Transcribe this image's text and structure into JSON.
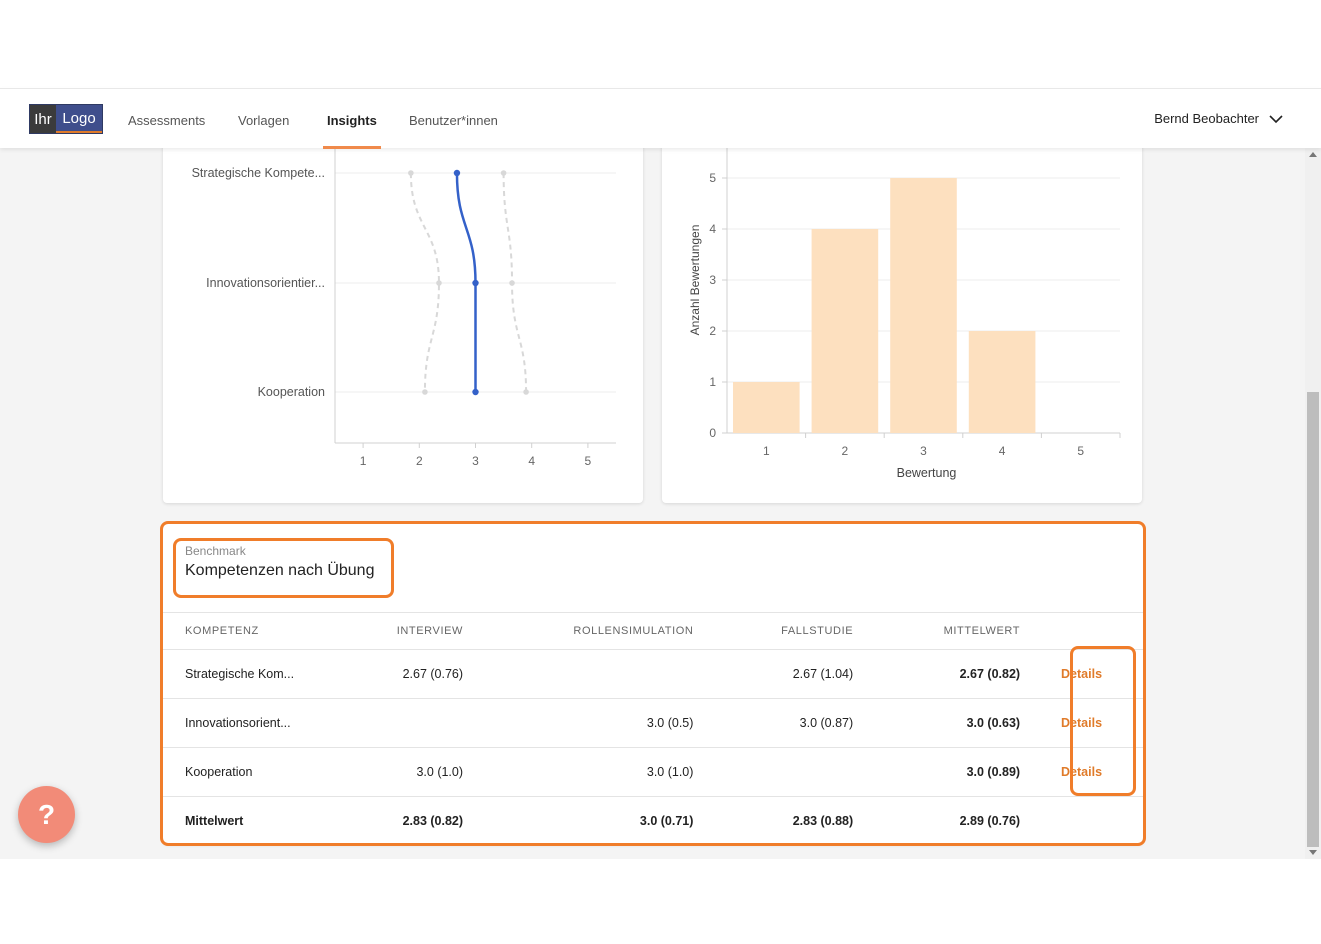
{
  "navbar": {
    "logo": {
      "part1": "Ihr",
      "part2": "Logo"
    },
    "items": [
      {
        "label": "Assessments"
      },
      {
        "label": "Vorlagen"
      },
      {
        "label": "Insights"
      },
      {
        "label": "Benutzer*innen"
      }
    ],
    "user": "Bernd Beobachter"
  },
  "chart_data": [
    {
      "type": "line",
      "categories": [
        "Strategische Kompete...",
        "Innovationsorientier...",
        "Kooperation"
      ],
      "x_ticks": [
        1,
        2,
        3,
        4,
        5
      ],
      "xlim": [
        0.5,
        5.5
      ],
      "series": [
        {
          "values": [
            1.85,
            2.35,
            2.1
          ],
          "color": "#d8d8d8",
          "style": "dashed"
        },
        {
          "values": [
            2.67,
            3.0,
            3.0
          ],
          "color": "#3461c9",
          "style": "solid"
        },
        {
          "values": [
            3.5,
            3.65,
            3.9
          ],
          "color": "#d8d8d8",
          "style": "dashed"
        }
      ],
      "grid": true
    },
    {
      "type": "bar",
      "categories": [
        "1",
        "2",
        "3",
        "4",
        "5"
      ],
      "values": [
        1,
        4,
        5,
        2,
        0
      ],
      "xlabel": "Bewertung",
      "ylabel": "Anzahl Bewertungen",
      "ylim": [
        0,
        5
      ],
      "y_ticks": [
        0,
        1,
        2,
        3,
        4,
        5
      ],
      "bar_color": "#fde0bf",
      "grid": true
    }
  ],
  "table": {
    "eyebrow": "Benchmark",
    "title": "Kompetenzen nach Übung",
    "columns": [
      "Kompetenz",
      "Interview",
      "Rollensimulation",
      "Fallstudie",
      "Mittelwert"
    ],
    "rows": [
      {
        "name": "Strategische Kom...",
        "interview": "2.67 (0.76)",
        "rollen": "",
        "fall": "2.67 (1.04)",
        "mittel": "2.67 (0.82)",
        "details": "Details"
      },
      {
        "name": "Innovationsorient...",
        "interview": "",
        "rollen": "3.0 (0.5)",
        "fall": "3.0 (0.87)",
        "mittel": "3.0 (0.63)",
        "details": "Details"
      },
      {
        "name": "Kooperation",
        "interview": "3.0 (1.0)",
        "rollen": "3.0 (1.0)",
        "fall": "",
        "mittel": "3.0 (0.89)",
        "details": "Details"
      }
    ],
    "summary": {
      "name": "Mittelwert",
      "interview": "2.83 (0.82)",
      "rollen": "3.0 (0.71)",
      "fall": "2.83 (0.88)",
      "mittel": "2.89 (0.76)"
    }
  },
  "help": {
    "label": "?"
  },
  "colors": {
    "accent": "#f07d2a",
    "help": "#f28b78"
  }
}
